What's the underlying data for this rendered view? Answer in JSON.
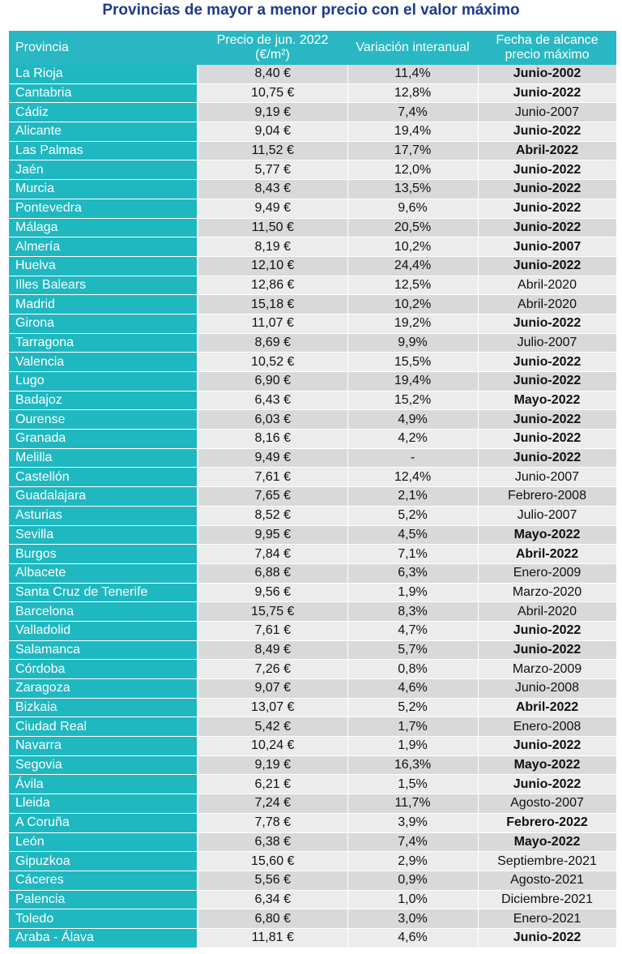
{
  "title": "Provincias de mayor a menor precio con el valor máximo",
  "headers": {
    "province": "Provincia",
    "price": "Precio de jun. 2022 (€/m²)",
    "variation": "Variación interanual",
    "date": "Fecha de alcance precio máximo"
  },
  "colors": {
    "title": "#1f3a8a",
    "header_bg": "#29b8c3",
    "province_bg": "#1fb8c1",
    "row_odd": "#d9d9d9",
    "row_even": "#ececec"
  },
  "rows": [
    {
      "province": "La Rioja",
      "price": "8,40 €",
      "variation": "11,4%",
      "date": "Junio-2002",
      "bold": true
    },
    {
      "province": "Cantabria",
      "price": "10,75 €",
      "variation": "12,8%",
      "date": "Junio-2022",
      "bold": true
    },
    {
      "province": "Cádiz",
      "price": "9,19 €",
      "variation": "7,4%",
      "date": "Junio-2007",
      "bold": false
    },
    {
      "province": "Alicante",
      "price": "9,04 €",
      "variation": "19,4%",
      "date": "Junio-2022",
      "bold": true
    },
    {
      "province": "Las Palmas",
      "price": "11,52 €",
      "variation": "17,7%",
      "date": "Abril-2022",
      "bold": true
    },
    {
      "province": "Jaén",
      "price": "5,77 €",
      "variation": "12,0%",
      "date": "Junio-2022",
      "bold": true
    },
    {
      "province": "Murcia",
      "price": "8,43 €",
      "variation": "13,5%",
      "date": "Junio-2022",
      "bold": true
    },
    {
      "province": "Pontevedra",
      "price": "9,49 €",
      "variation": "9,6%",
      "date": "Junio-2022",
      "bold": true
    },
    {
      "province": "Málaga",
      "price": "11,50 €",
      "variation": "20,5%",
      "date": "Junio-2022",
      "bold": true
    },
    {
      "province": "Almería",
      "price": "8,19 €",
      "variation": "10,2%",
      "date": "Junio-2007",
      "bold": true
    },
    {
      "province": "Huelva",
      "price": "12,10 €",
      "variation": "24,4%",
      "date": "Junio-2022",
      "bold": true
    },
    {
      "province": "Illes Balears",
      "price": "12,86 €",
      "variation": "12,5%",
      "date": "Abril-2020",
      "bold": false
    },
    {
      "province": "Madrid",
      "price": "15,18 €",
      "variation": "10,2%",
      "date": "Abril-2020",
      "bold": false
    },
    {
      "province": "Girona",
      "price": "11,07 €",
      "variation": "19,2%",
      "date": "Junio-2022",
      "bold": true
    },
    {
      "province": "Tarragona",
      "price": "8,69 €",
      "variation": "9,9%",
      "date": "Julio-2007",
      "bold": false
    },
    {
      "province": "Valencia",
      "price": "10,52 €",
      "variation": "15,5%",
      "date": "Junio-2022",
      "bold": true
    },
    {
      "province": "Lugo",
      "price": "6,90 €",
      "variation": "19,4%",
      "date": "Junio-2022",
      "bold": true
    },
    {
      "province": "Badajoz",
      "price": "6,43 €",
      "variation": "15,2%",
      "date": "Mayo-2022",
      "bold": true
    },
    {
      "province": "Ourense",
      "price": "6,03 €",
      "variation": "4,9%",
      "date": "Junio-2022",
      "bold": true
    },
    {
      "province": "Granada",
      "price": "8,16 €",
      "variation": "4,2%",
      "date": "Junio-2022",
      "bold": true
    },
    {
      "province": "Melilla",
      "price": "9,49 €",
      "variation": "-",
      "date": "Junio-2022",
      "bold": true
    },
    {
      "province": "Castellón",
      "price": "7,61 €",
      "variation": "12,4%",
      "date": "Junio-2007",
      "bold": false
    },
    {
      "province": "Guadalajara",
      "price": "7,65 €",
      "variation": "2,1%",
      "date": "Febrero-2008",
      "bold": false
    },
    {
      "province": "Asturias",
      "price": "8,52 €",
      "variation": "5,2%",
      "date": "Julio-2007",
      "bold": false
    },
    {
      "province": "Sevilla",
      "price": "9,95 €",
      "variation": "4,5%",
      "date": "Mayo-2022",
      "bold": true
    },
    {
      "province": "Burgos",
      "price": "7,84 €",
      "variation": "7,1%",
      "date": "Abril-2022",
      "bold": true
    },
    {
      "province": "Albacete",
      "price": "6,88 €",
      "variation": "6,3%",
      "date": "Enero-2009",
      "bold": false
    },
    {
      "province": "Santa Cruz de Tenerife",
      "price": "9,56 €",
      "variation": "1,9%",
      "date": "Marzo-2020",
      "bold": false
    },
    {
      "province": "Barcelona",
      "price": "15,75 €",
      "variation": "8,3%",
      "date": "Abril-2020",
      "bold": false
    },
    {
      "province": "Valladolid",
      "price": "7,61 €",
      "variation": "4,7%",
      "date": "Junio-2022",
      "bold": true
    },
    {
      "province": "Salamanca",
      "price": "8,49 €",
      "variation": "5,7%",
      "date": "Junio-2022",
      "bold": true
    },
    {
      "province": "Córdoba",
      "price": "7,26 €",
      "variation": "0,8%",
      "date": "Marzo-2009",
      "bold": false
    },
    {
      "province": "Zaragoza",
      "price": "9,07 €",
      "variation": "4,6%",
      "date": "Junio-2008",
      "bold": false
    },
    {
      "province": "Bizkaia",
      "price": "13,07 €",
      "variation": "5,2%",
      "date": "Abril-2022",
      "bold": true
    },
    {
      "province": "Ciudad Real",
      "price": "5,42 €",
      "variation": "1,7%",
      "date": "Enero-2008",
      "bold": false
    },
    {
      "province": "Navarra",
      "price": "10,24 €",
      "variation": "1,9%",
      "date": "Junio-2022",
      "bold": true
    },
    {
      "province": "Segovia",
      "price": "9,19 €",
      "variation": "16,3%",
      "date": "Mayo-2022",
      "bold": true
    },
    {
      "province": "Ávila",
      "price": "6,21 €",
      "variation": "1,5%",
      "date": "Junio-2022",
      "bold": true
    },
    {
      "province": "Lleida",
      "price": "7,24 €",
      "variation": "11,7%",
      "date": "Agosto-2007",
      "bold": false
    },
    {
      "province": "A Coruña",
      "price": "7,78 €",
      "variation": "3,9%",
      "date": "Febrero-2022",
      "bold": true
    },
    {
      "province": "León",
      "price": "6,38 €",
      "variation": "7,4%",
      "date": "Mayo-2022",
      "bold": true
    },
    {
      "province": "Gipuzkoa",
      "price": "15,60 €",
      "variation": "2,9%",
      "date": "Septiembre-2021",
      "bold": false
    },
    {
      "province": "Cáceres",
      "price": "5,56 €",
      "variation": "0,9%",
      "date": "Agosto-2021",
      "bold": false
    },
    {
      "province": "Palencia",
      "price": "6,34 €",
      "variation": "1,0%",
      "date": "Diciembre-2021",
      "bold": false
    },
    {
      "province": "Toledo",
      "price": "6,80 €",
      "variation": "3,0%",
      "date": "Enero-2021",
      "bold": false
    },
    {
      "province": "Araba - Álava",
      "price": "11,81 €",
      "variation": "4,6%",
      "date": "Junio-2022",
      "bold": true
    }
  ]
}
